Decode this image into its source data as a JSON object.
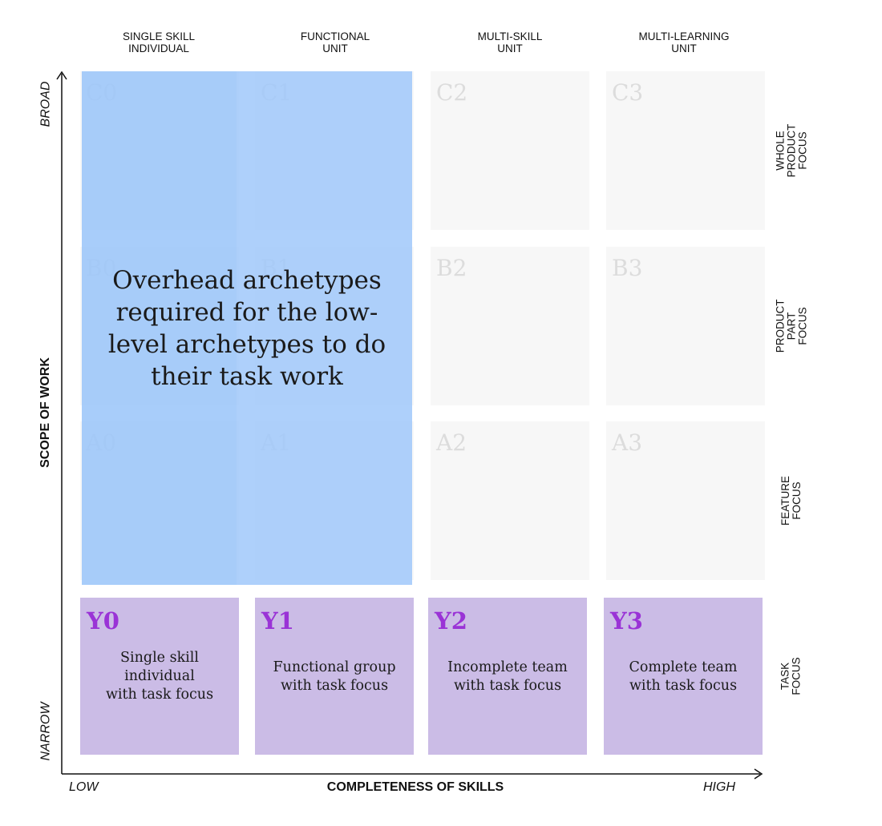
{
  "columns": [
    {
      "label": "SINGLE SKILL\nINDIVIDUAL"
    },
    {
      "label": "FUNCTIONAL\nUNIT"
    },
    {
      "label": "MULTI-SKILL\nUNIT"
    },
    {
      "label": "MULTI-LEARNING\nUNIT"
    }
  ],
  "rows": [
    {
      "label": "WHOLE PRODUCT\nFOCUS"
    },
    {
      "label": "PRODUCT PART\nFOCUS"
    },
    {
      "label": "FEATURE\nFOCUS"
    },
    {
      "label": "TASK\nFOCUS"
    }
  ],
  "grid": {
    "C": [
      "C0",
      "C1",
      "C2",
      "C3"
    ],
    "B": [
      "B0",
      "B1",
      "B2",
      "B3"
    ],
    "A": [
      "A0",
      "A1",
      "A2",
      "A3"
    ]
  },
  "overlay_text": "Overhead archetypes\nrequired for the low-\nlevel archetypes to do\ntheir task work",
  "task_row": [
    {
      "code": "Y0",
      "desc": "Single skill\nindividual\nwith task focus"
    },
    {
      "code": "Y1",
      "desc": "Functional group\nwith task focus"
    },
    {
      "code": "Y2",
      "desc": "Incomplete team\nwith task focus"
    },
    {
      "code": "Y3",
      "desc": "Complete team\nwith task focus"
    }
  ],
  "axes": {
    "y_title": "SCOPE OF WORK",
    "y_top": "BROAD",
    "y_bottom": "NARROW",
    "x_title": "COMPLETENESS OF SKILLS",
    "x_left": "LOW",
    "x_right": "HIGH"
  },
  "colors": {
    "overlay": "#a0c8fa",
    "task_cell": "#cbbce6",
    "task_code": "#9a33d6",
    "empty_cell": "#f7f7f7"
  }
}
